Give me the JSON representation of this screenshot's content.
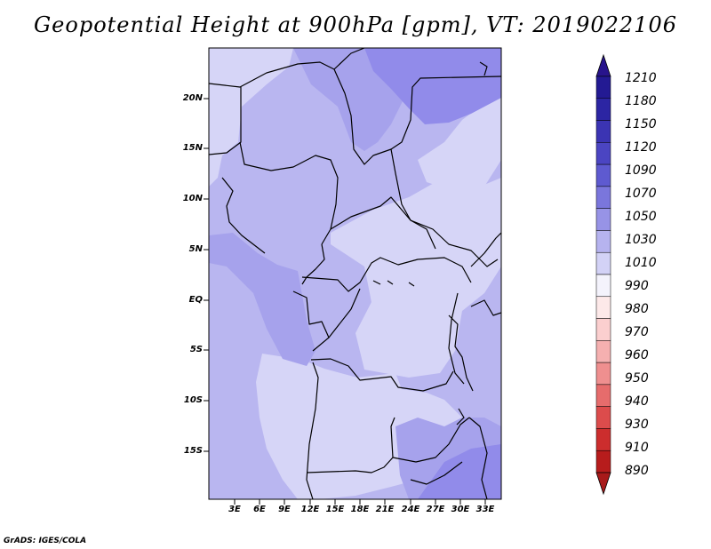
{
  "title": "Geopotential Height at 900hPa [gpm], VT: 2019022106",
  "credit": "GrADS: IGES/COLA",
  "lat_labels": [
    "20N",
    "15N",
    "10N",
    "5N",
    "EQ",
    "5S",
    "10S",
    "15S"
  ],
  "lon_labels": [
    "3E",
    "6E",
    "9E",
    "12E",
    "15E",
    "18E",
    "21E",
    "24E",
    "27E",
    "30E",
    "33E"
  ],
  "colorbar": {
    "levels": [
      "1210",
      "1180",
      "1150",
      "1120",
      "1090",
      "1070",
      "1050",
      "1030",
      "1010",
      "990",
      "980",
      "970",
      "960",
      "950",
      "940",
      "930",
      "910",
      "890"
    ],
    "colors": {
      "top_arrow": "#28148c",
      "segments": [
        "#231a93",
        "#2c25a3",
        "#3b34b3",
        "#4b45c2",
        "#5e5ad0",
        "#7a76dc",
        "#9793e6",
        "#b6b3ef",
        "#d3d2f6",
        "#f4f3fc",
        "#fde9e9",
        "#fbcfcf",
        "#f5b0b0",
        "#ef8f8f",
        "#e66c6c",
        "#dc4c4c",
        "#cc2d2d",
        "#b71c1c"
      ],
      "bottom_arrow": "#a81a1a"
    }
  },
  "map": {
    "colors": {
      "lightest": "#d6d5f7",
      "light": "#b9b6f0",
      "medium": "#a6a2ec",
      "deep": "#918bea",
      "border": "#000000"
    }
  }
}
